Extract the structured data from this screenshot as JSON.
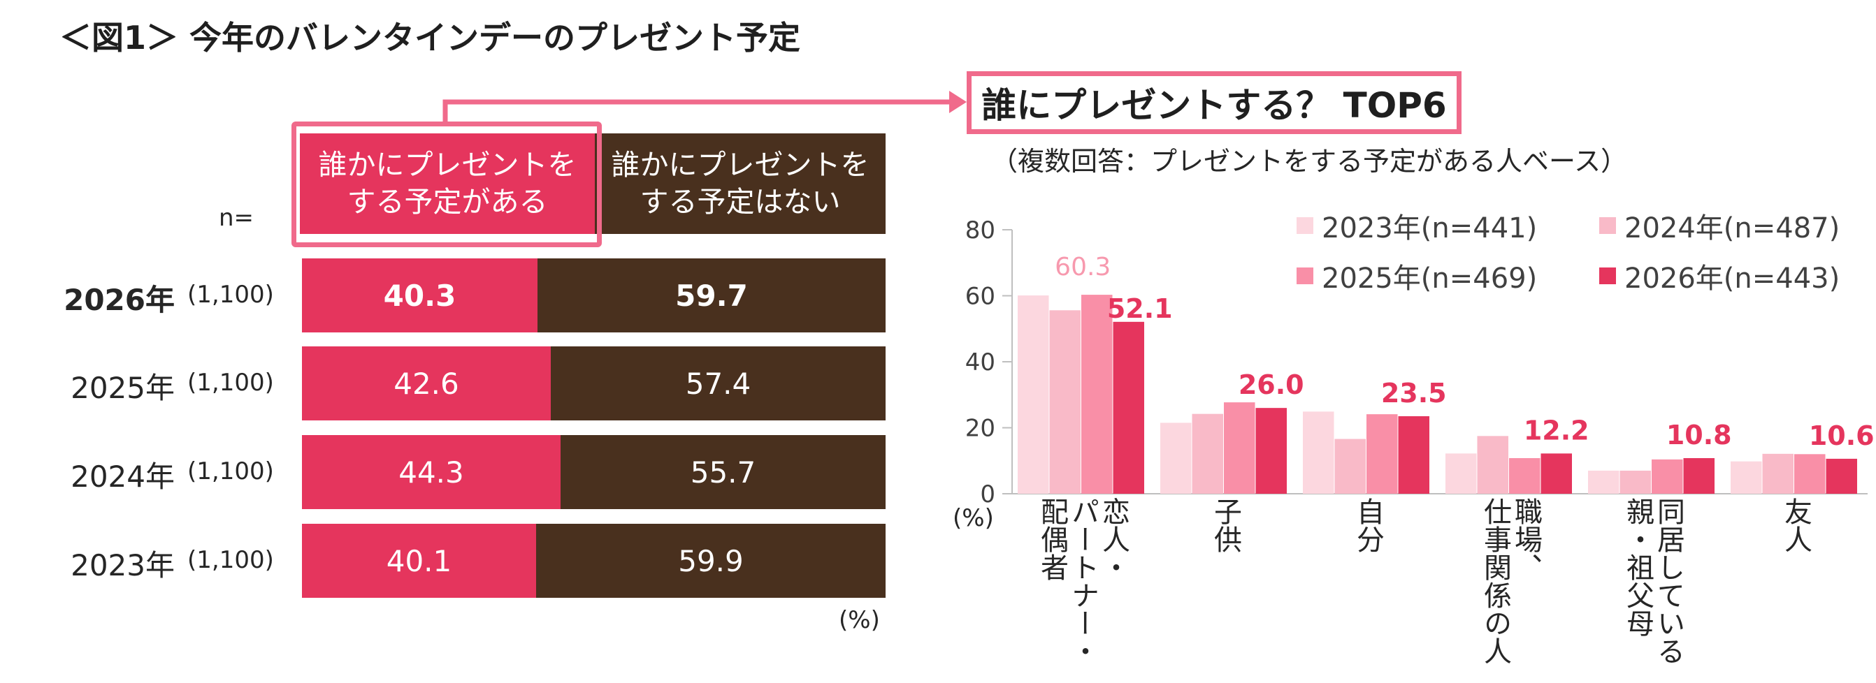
{
  "title": "＜図1＞ 今年のバレンタインデーのプレゼント予定",
  "left_chart": {
    "header_yes": [
      "誰かにプレゼントを",
      "する予定がある"
    ],
    "header_no": [
      "誰かにプレゼントを",
      "する予定はない"
    ],
    "n_label": "n=",
    "unit": "(%)",
    "rows": [
      {
        "year": "2026年",
        "n": "(1,100)",
        "yes": 40.3,
        "no": 59.7,
        "yes_label": "40.3",
        "no_label": "59.7",
        "bold": true
      },
      {
        "year": "2025年",
        "n": "(1,100)",
        "yes": 42.6,
        "no": 57.4,
        "yes_label": "42.6",
        "no_label": "57.4",
        "bold": false
      },
      {
        "year": "2024年",
        "n": "(1,100)",
        "yes": 44.3,
        "no": 55.7,
        "yes_label": "44.3",
        "no_label": "55.7",
        "bold": false
      },
      {
        "year": "2023年",
        "n": "(1,100)",
        "yes": 40.1,
        "no": 59.9,
        "yes_label": "40.1",
        "no_label": "59.9",
        "bold": false
      }
    ]
  },
  "right_title": "誰にプレゼントする？ TOP6",
  "right_subtitle": "（複数回答：プレゼントをする予定がある人ベース）",
  "colors": {
    "pink": "#e5355d",
    "brown": "#49301e",
    "outline": "#f06a8b",
    "s2023": "#fcd7df",
    "s2024": "#f9bac8",
    "s2025": "#f98fa7",
    "s2026": "#e5355d",
    "label2025": "#f799ae"
  },
  "chart_data": {
    "type": "bar",
    "title": "誰にプレゼントする？ TOP6",
    "ylabel": "(%)",
    "ylim": [
      0,
      80
    ],
    "yticks": [
      "0",
      "20",
      "40",
      "60",
      "80"
    ],
    "categories": [
      {
        "name": "恋人・パートナー・配偶者",
        "cols": [
          "恋人・",
          "パートナー・",
          "配偶者"
        ]
      },
      {
        "name": "子供",
        "cols": [
          "子供"
        ]
      },
      {
        "name": "自分",
        "cols": [
          "自分"
        ]
      },
      {
        "name": "職場、仕事関係の人",
        "cols": [
          "職場、",
          "仕事関係の人"
        ]
      },
      {
        "name": "同居している親・祖父母",
        "cols": [
          "同居している",
          "親・祖父母"
        ]
      },
      {
        "name": "友人",
        "cols": [
          "友人"
        ]
      }
    ],
    "series": [
      {
        "name": "2023年(n=441)",
        "values": [
          60.1,
          21.5,
          24.9,
          12.2,
          7.0,
          9.8
        ]
      },
      {
        "name": "2024年(n=487)",
        "values": [
          55.6,
          24.2,
          16.6,
          17.5,
          7.0,
          12.1
        ]
      },
      {
        "name": "2025年(n=469)",
        "values": [
          60.3,
          27.7,
          24.1,
          10.8,
          10.4,
          12.0
        ]
      },
      {
        "name": "2026年(n=443)",
        "values": [
          52.1,
          26.0,
          23.5,
          12.2,
          10.8,
          10.6
        ]
      }
    ],
    "data_labels_2026": [
      "52.1",
      "26.0",
      "23.5",
      "12.2",
      "10.8",
      "10.6"
    ],
    "data_label_2025_first": "60.3"
  }
}
